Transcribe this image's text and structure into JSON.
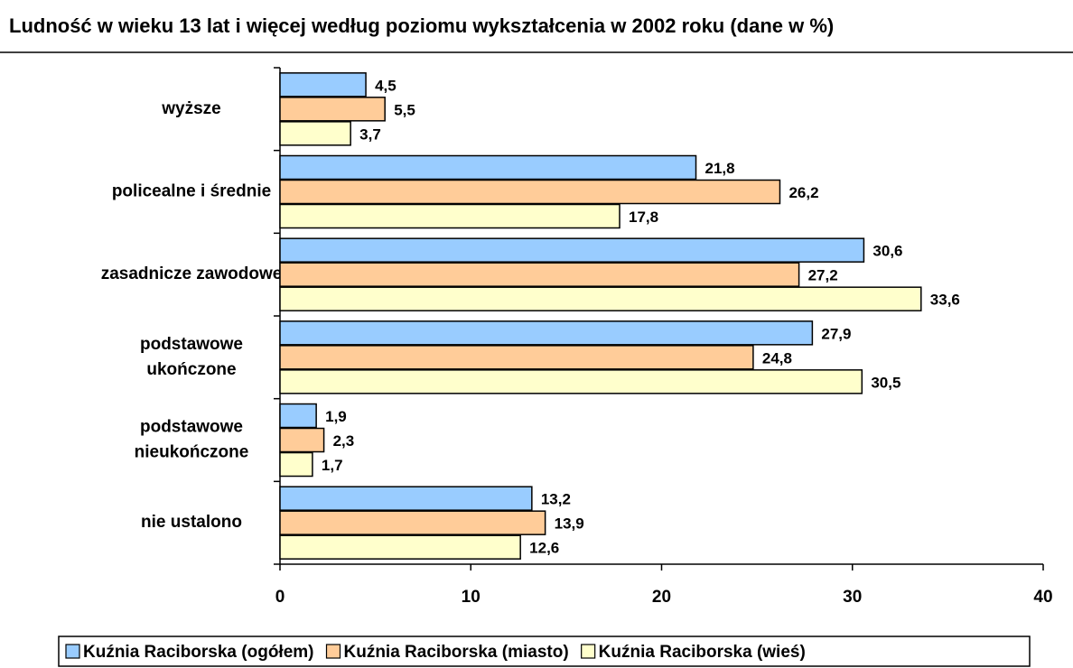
{
  "chart_data": {
    "type": "bar",
    "orientation": "horizontal",
    "title": "Ludność w wieku 13 lat i więcej według poziomu wykształcenia w 2002 roku (dane w %)",
    "categories": [
      "wyższe",
      "policealne i średnie",
      "zasadnicze zawodowe",
      "podstawowe\nukończone",
      "podstawowe\nnieukończone",
      "nie ustalono"
    ],
    "series": [
      {
        "name": "Kuźnia Raciborska (ogółem)",
        "color": "#99ccff",
        "values": [
          4.5,
          21.8,
          30.6,
          27.9,
          1.9,
          13.2
        ],
        "value_labels": [
          "4,5",
          "21,8",
          "30,6",
          "27,9",
          "1,9",
          "13,2"
        ]
      },
      {
        "name": "Kuźnia Raciborska (miasto)",
        "color": "#ffcc99",
        "values": [
          5.5,
          26.2,
          27.2,
          24.8,
          2.3,
          13.9
        ],
        "value_labels": [
          "5,5",
          "26,2",
          "27,2",
          "24,8",
          "2,3",
          "13,9"
        ]
      },
      {
        "name": "Kuźnia Raciborska (wieś)",
        "color": "#ffffcc",
        "values": [
          3.7,
          17.8,
          33.6,
          30.5,
          1.7,
          12.6
        ],
        "value_labels": [
          "3,7",
          "17,8",
          "33,6",
          "30,5",
          "1,7",
          "12,6"
        ]
      }
    ],
    "xlim": [
      0,
      40
    ],
    "xticks": [
      0,
      10,
      20,
      30,
      40
    ],
    "legend": "bottom"
  }
}
